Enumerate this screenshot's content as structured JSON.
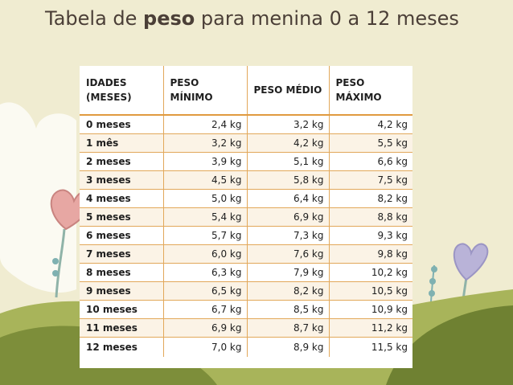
{
  "title": {
    "prefix": "Tabela de ",
    "emphasis": "peso",
    "suffix": " para menina 0 a 12 meses"
  },
  "table": {
    "headers": [
      {
        "line1": "IDADES",
        "line2": "(MESES)"
      },
      {
        "line1": "PESO",
        "line2": "MÍNIMO"
      },
      {
        "line1": "PESO MÉDIO",
        "line2": ""
      },
      {
        "line1": "PESO",
        "line2": "MÁXIMO"
      }
    ],
    "rows": [
      {
        "age": "0 meses",
        "min": "2,4 kg",
        "avg": "3,2 kg",
        "max": "4,2 kg"
      },
      {
        "age": "1 mês",
        "min": "3,2 kg",
        "avg": "4,2 kg",
        "max": "5,5 kg"
      },
      {
        "age": "2 meses",
        "min": "3,9 kg",
        "avg": "5,1 kg",
        "max": "6,6 kg"
      },
      {
        "age": "3 meses",
        "min": "4,5 kg",
        "avg": "5,8 kg",
        "max": "7,5 kg"
      },
      {
        "age": "4 meses",
        "min": "5,0 kg",
        "avg": "6,4 kg",
        "max": "8,2 kg"
      },
      {
        "age": "5 meses",
        "min": "5,4 kg",
        "avg": "6,9 kg",
        "max": "8,8 kg"
      },
      {
        "age": "6 meses",
        "min": "5,7 kg",
        "avg": "7,3 kg",
        "max": "9,3 kg"
      },
      {
        "age": "7 meses",
        "min": "6,0 kg",
        "avg": "7,6 kg",
        "max": "9,8 kg"
      },
      {
        "age": "8 meses",
        "min": "6,3 kg",
        "avg": "7,9 kg",
        "max": "10,2 kg"
      },
      {
        "age": "9 meses",
        "min": "6,5 kg",
        "avg": "8,2 kg",
        "max": "10,5 kg"
      },
      {
        "age": "10 meses",
        "min": "6,7 kg",
        "avg": "8,5 kg",
        "max": "10,9 kg"
      },
      {
        "age": "11 meses",
        "min": "6,9 kg",
        "avg": "8,7 kg",
        "max": "11,2 kg"
      },
      {
        "age": "12 meses",
        "min": "7,0 kg",
        "avg": "8,9 kg",
        "max": "11,5 kg"
      }
    ]
  },
  "colors": {
    "background": "#f0ecd1",
    "title_text": "#4b3f37",
    "table_border": "#e2a85a",
    "hill_dark": "#7d8e3a",
    "hill_light": "#a8b45a",
    "heart_pink": "#e7a7a3",
    "heart_lavender": "#b9b3d8",
    "stem_teal": "#7fb1b1"
  },
  "icons": {
    "heart_left": "heart-flower-icon",
    "heart_right": "heart-flower-icon"
  }
}
